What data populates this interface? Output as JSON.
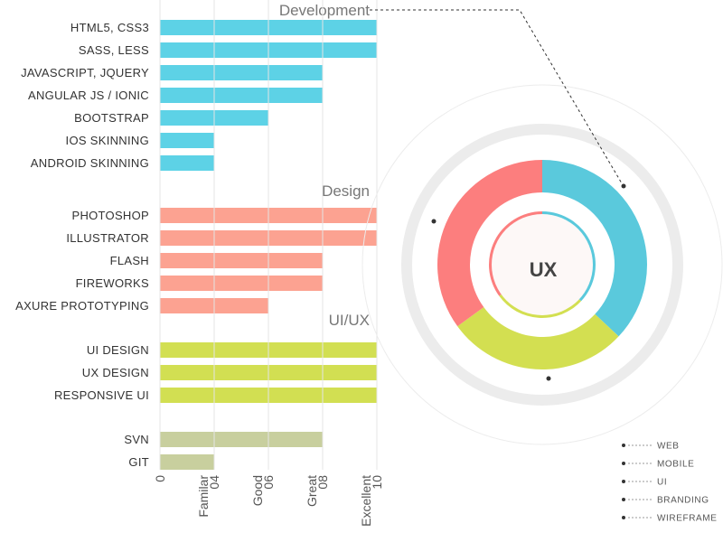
{
  "chart_data": [
    {
      "type": "bar",
      "orientation": "horizontal",
      "x_ticks": [
        {
          "value": 0,
          "number": "0",
          "label": ""
        },
        {
          "value": 2,
          "number": "04",
          "label": "Familar"
        },
        {
          "value": 4,
          "number": "06",
          "label": "Good"
        },
        {
          "value": 6,
          "number": "08",
          "label": "Great"
        },
        {
          "value": 8,
          "number": "10",
          "label": "Excellent"
        }
      ],
      "xlim": [
        0,
        8
      ],
      "groups": [
        {
          "name": "Development",
          "color": "#5dd2e6",
          "items": [
            {
              "label": "HTML5, CSS3",
              "value": 8
            },
            {
              "label": "SASS, LESS",
              "value": 8
            },
            {
              "label": "JAVASCRIPT, JQUERY",
              "value": 6
            },
            {
              "label": "ANGULAR JS / IONIC",
              "value": 6
            },
            {
              "label": "BOOTSTRAP",
              "value": 4
            },
            {
              "label": "IOS SKINNING",
              "value": 2
            },
            {
              "label": "ANDROID SKINNING",
              "value": 2
            }
          ]
        },
        {
          "name": "Design",
          "color": "#fca291",
          "items": [
            {
              "label": "PHOTOSHOP",
              "value": 8
            },
            {
              "label": "ILLUSTRATOR",
              "value": 8
            },
            {
              "label": "FLASH",
              "value": 6
            },
            {
              "label": "FIREWORKS",
              "value": 6
            },
            {
              "label": "AXURE PROTOTYPING",
              "value": 4
            }
          ]
        },
        {
          "name": "UI/UX",
          "color": "#d2df52",
          "items": [
            {
              "label": "UI DESIGN",
              "value": 8
            },
            {
              "label": "UX DESIGN",
              "value": 8
            },
            {
              "label": "RESPONSIVE UI",
              "value": 8
            }
          ]
        },
        {
          "name": "",
          "color": "#c8cf9e",
          "items": [
            {
              "label": "SVN",
              "value": 6
            },
            {
              "label": "GIT",
              "value": 2
            }
          ]
        }
      ]
    },
    {
      "type": "pie",
      "variant": "donut",
      "center_label": "UX",
      "slices": [
        {
          "value": 37,
          "color": "#5ac9dc"
        },
        {
          "value": 28,
          "color": "#d3df51"
        },
        {
          "value": 35,
          "color": "#fc7e7e"
        }
      ],
      "inner_ring": [
        {
          "value": 37,
          "color": "#5ac9dc"
        },
        {
          "value": 28,
          "color": "#d3df51"
        },
        {
          "value": 35,
          "color": "#fc7e7e"
        }
      ],
      "legend": {
        "placement": "bottom-right",
        "items": [
          "WEB",
          "MOBILE",
          "UI",
          "BRANDING",
          "WIREFRAME"
        ]
      }
    }
  ]
}
